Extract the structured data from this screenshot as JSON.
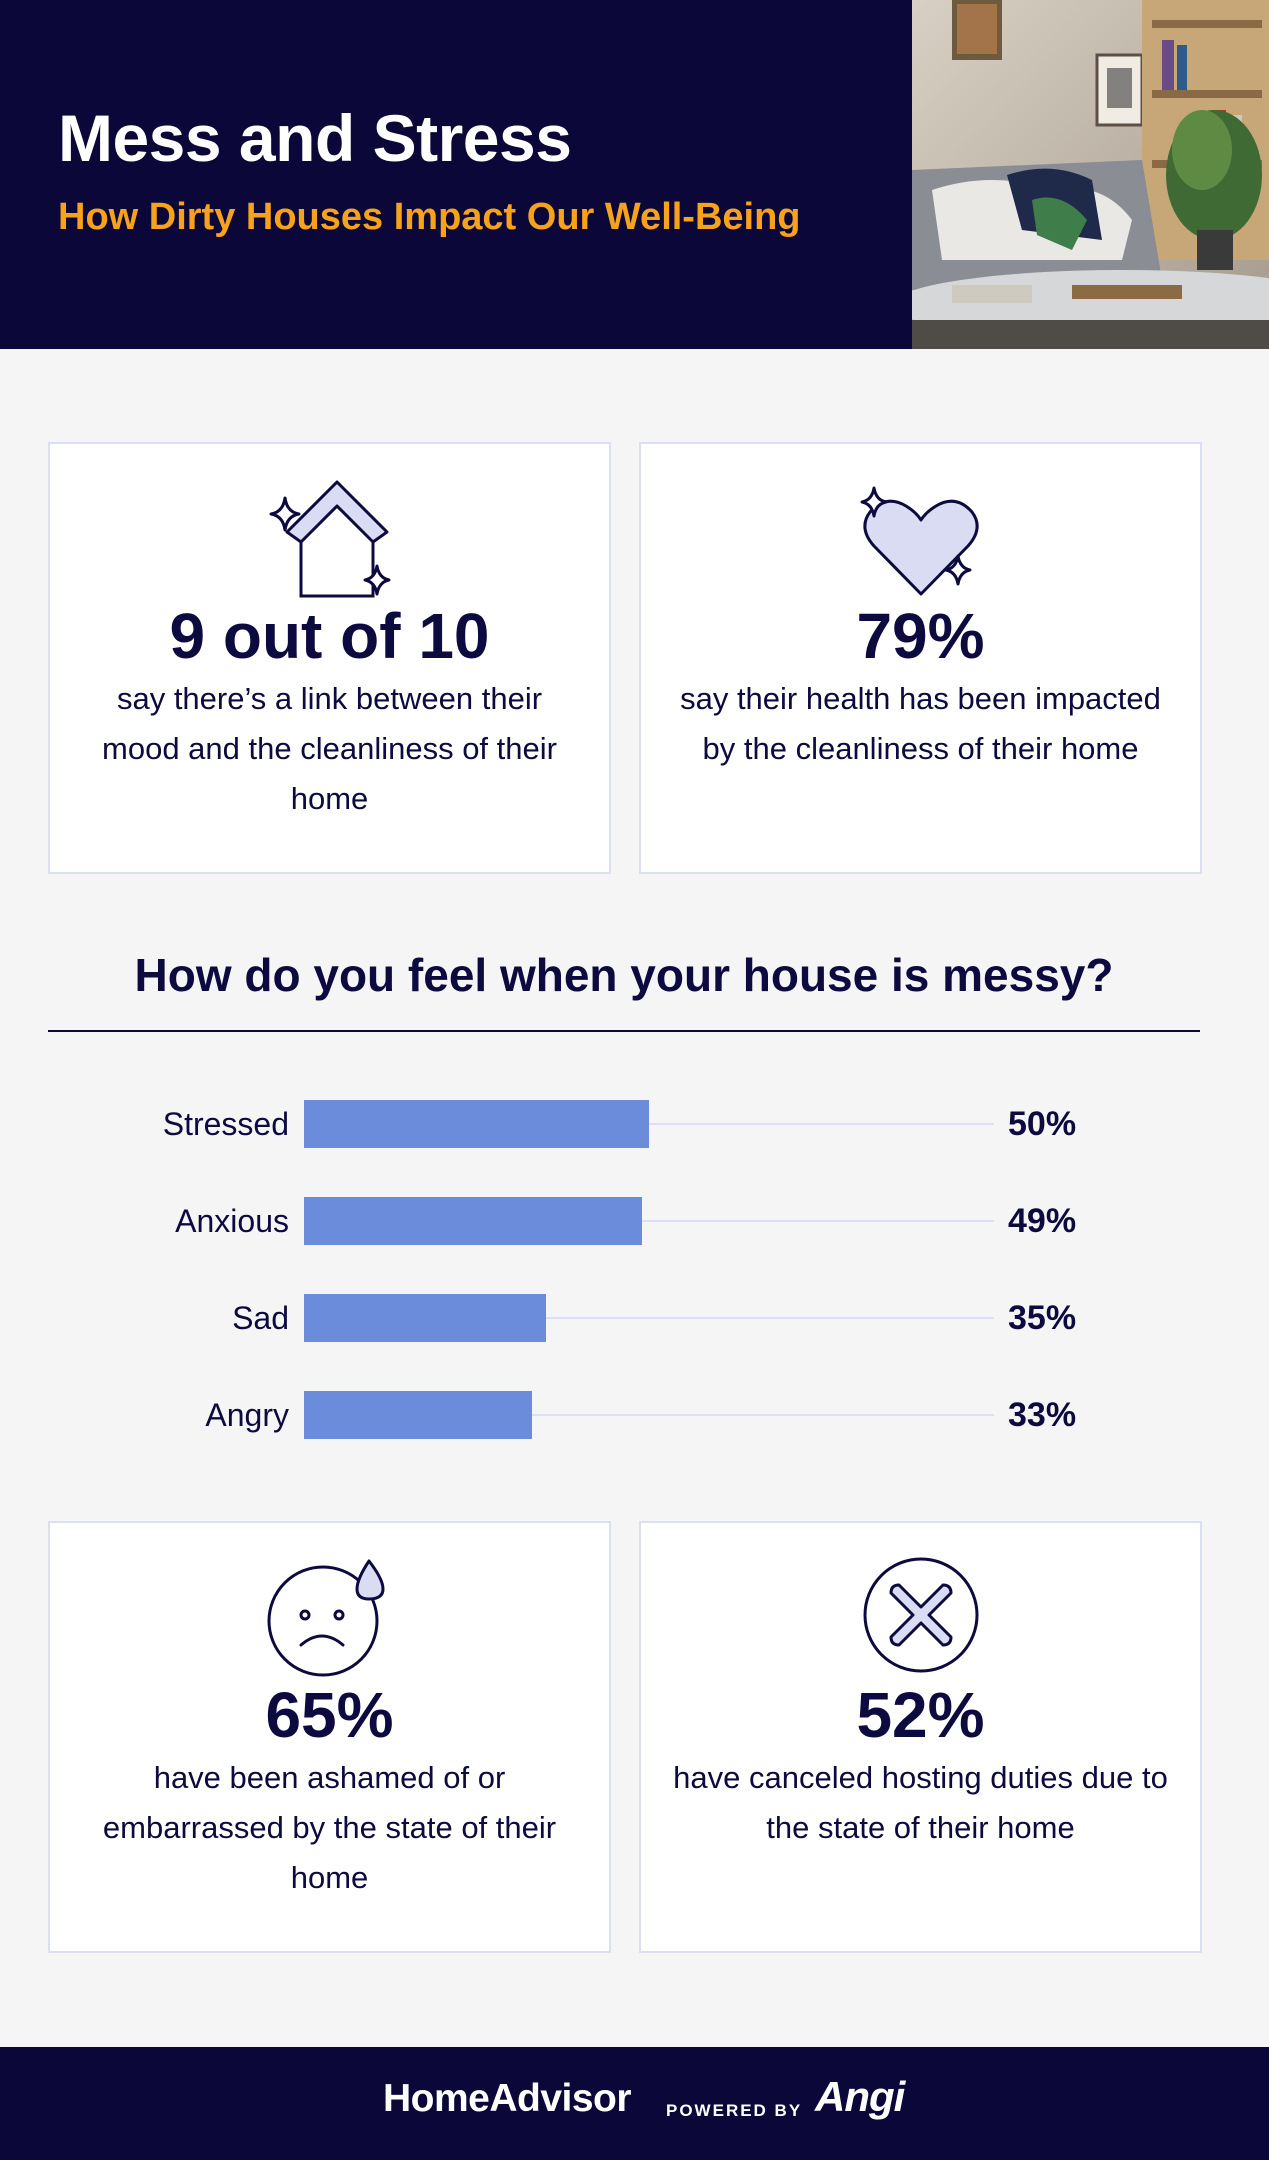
{
  "header": {
    "title": "Mess and Stress",
    "subtitle": "How Dirty Houses Impact Our Well-Being"
  },
  "cards": [
    {
      "icon": "house-sparkle-icon",
      "stat": "9 out of 10",
      "text": "say there’s a link between their mood and the cleanliness of their home"
    },
    {
      "icon": "heart-sparkle-icon",
      "stat": "79%",
      "text": "say their health has been impacted by the cleanliness of their home"
    },
    {
      "icon": "sad-face-sweat-icon",
      "stat": "65%",
      "text": "have been ashamed of or embarrassed by the state of their home"
    },
    {
      "icon": "x-circle-icon",
      "stat": "52%",
      "text": "have canceled hosting duties due to the state of their home"
    }
  ],
  "chart_data": {
    "type": "bar",
    "orientation": "horizontal",
    "title": "How do you feel when your house is messy?",
    "categories": [
      "Stressed",
      "Anxious",
      "Sad",
      "Angry"
    ],
    "values": [
      50,
      49,
      35,
      33
    ],
    "value_labels": [
      "50%",
      "49%",
      "35%",
      "33%"
    ],
    "xlim": [
      0,
      100
    ],
    "colors": {
      "bar": "#6b8bdb",
      "track": "#dcdff5"
    }
  },
  "footer": {
    "brand": "HomeAdvisor",
    "powered_by": "POWERED BY",
    "partner": "Angi"
  },
  "colors": {
    "navy": "#0b0839",
    "accent_orange": "#f7a21b",
    "icon_fill": "#d9dcf2"
  }
}
